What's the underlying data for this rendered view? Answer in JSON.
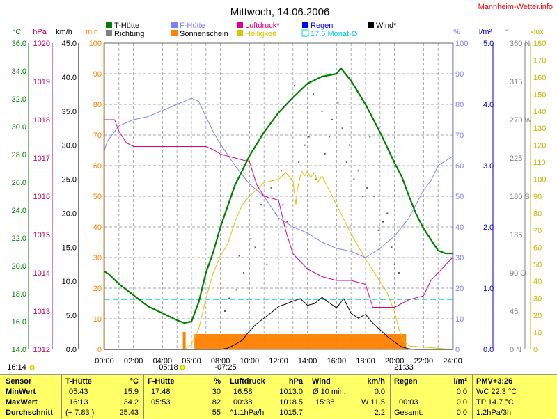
{
  "title": "Mittwoch, 14.06.2006",
  "site": "Mannheim-Wetter.info",
  "legend": [
    {
      "label": "T-Hütte",
      "color": "#008000"
    },
    {
      "label": "Richtung",
      "color": "#808080"
    },
    {
      "label": "F-Hütte",
      "color": "#8080ff"
    },
    {
      "label": "Sonnenschein",
      "color": "#ff8000"
    },
    {
      "label": "Luftdruck*",
      "color": "#e0007f"
    },
    {
      "label": "Helligkeit",
      "color": "#d4c800"
    },
    {
      "label": "Regen",
      "color": "#0000ff"
    },
    {
      "label": "17.6 Monat-Ø",
      "color": "#00d0d0"
    },
    {
      "label": "Wind*",
      "color": "#000000"
    }
  ],
  "axes": {
    "temp": {
      "unit": "°C",
      "color": "#008000",
      "ticks": [
        "36.0",
        "34.0",
        "32.0",
        "30.0",
        "28.0",
        "26.0",
        "24.0",
        "22.0",
        "20.0",
        "18.0",
        "16.0",
        "14.0"
      ]
    },
    "pressure": {
      "unit": "hPa",
      "color": "#cc0066",
      "ticks": [
        "1020",
        "1019",
        "1018",
        "1017",
        "1016",
        "1015",
        "1014",
        "1013",
        "1012"
      ]
    },
    "wind": {
      "unit": "km/h",
      "color": "#000000",
      "ticks": [
        "45.0",
        "40.0",
        "35.0",
        "30.0",
        "25.0",
        "20.0",
        "15.0",
        "10.0",
        "5.0",
        "0.0"
      ]
    },
    "sun": {
      "unit": "min",
      "color": "#ff8000",
      "ticks": [
        "100",
        "90",
        "80",
        "70",
        "60",
        "50",
        "40",
        "30",
        "20",
        "10",
        "0"
      ]
    },
    "humidity": {
      "unit": "%",
      "color": "#8080ff",
      "ticks": [
        "100",
        "90",
        "80",
        "70",
        "60",
        "50",
        "40",
        "30",
        "20",
        "10",
        "0"
      ]
    },
    "rain": {
      "unit": "l/m²",
      "color": "#0000cc",
      "ticks": [
        "5.0",
        "4.0",
        "3.0",
        "2.0",
        "1.0",
        "0.0"
      ]
    },
    "direction": {
      "unit": "°",
      "color": "#808080",
      "ticks": [
        "360 N",
        "315",
        "270 W",
        "225",
        "180 S",
        "135",
        "90  O",
        "45",
        "0  N"
      ]
    },
    "lux": {
      "unit": "klux",
      "color": "#c8b400",
      "ticks": [
        "180",
        "170",
        "160",
        "150",
        "140",
        "130",
        "120",
        "110",
        "100",
        "90",
        "80",
        "70",
        "60",
        "50",
        "40",
        "30",
        "20",
        "10",
        "0"
      ]
    }
  },
  "x_ticks": [
    "00:00",
    "02:00",
    "04:00",
    "06:00",
    "08:00",
    "10:00",
    "12:00",
    "14:00",
    "16:00",
    "18:00",
    "20:00",
    "22:00",
    "24:00"
  ],
  "markers": {
    "sunrise": "05:18",
    "sunset": "21:33",
    "left_time": "16:14",
    "mid_time": "-07:25"
  },
  "chart_data": {
    "type": "line",
    "x_range": [
      0,
      24
    ],
    "month_avg_temp": 17.6,
    "series": [
      {
        "name": "T-Hütte",
        "axis": "temp",
        "ylim": [
          14,
          36
        ],
        "x": [
          0,
          0.3,
          1,
          2,
          3,
          4,
          5,
          5.5,
          6,
          6.5,
          7,
          7.5,
          8,
          8.5,
          9,
          10,
          11,
          12,
          13,
          14,
          15,
          16,
          16.3,
          17,
          18,
          19,
          20,
          20.5,
          21,
          21.5,
          22,
          22.5,
          23,
          23.5,
          24
        ],
        "y": [
          19.6,
          19.4,
          18.7,
          17.9,
          17.1,
          16.6,
          16.1,
          15.9,
          16.0,
          17.4,
          19.5,
          21.0,
          22.8,
          24.3,
          25.8,
          27.9,
          29.6,
          31.0,
          32.1,
          33.1,
          33.6,
          33.8,
          34.2,
          33.3,
          31.6,
          29.6,
          27.4,
          26.4,
          25.0,
          23.7,
          22.7,
          21.9,
          21.1,
          20.9,
          20.9
        ]
      },
      {
        "name": "F-Hütte",
        "axis": "humidity",
        "ylim": [
          0,
          100
        ],
        "x": [
          0,
          0.2,
          1,
          2,
          3,
          4,
          5,
          5.5,
          6,
          6.5,
          7,
          7.5,
          8,
          9,
          10,
          11,
          12,
          13,
          14,
          15,
          16,
          17,
          18,
          19,
          20,
          21,
          22,
          22.5,
          23,
          24
        ],
        "y": [
          65,
          68,
          73,
          75,
          76,
          78,
          80,
          81,
          82,
          81,
          76,
          71,
          67,
          60,
          54,
          50,
          43,
          40,
          38,
          35,
          33,
          32,
          30,
          33,
          37,
          43,
          52,
          55,
          60,
          63
        ]
      },
      {
        "name": "Luftdruck*",
        "axis": "pressure",
        "ylim": [
          1012,
          1020
        ],
        "x": [
          0,
          0.7,
          1,
          1.5,
          2,
          3,
          4,
          5,
          6,
          7,
          7.6,
          8,
          9,
          10,
          10.5,
          11,
          12,
          12.5,
          13,
          14,
          15,
          16,
          17,
          18,
          18.5,
          19,
          20,
          21,
          22,
          22.5,
          23,
          24
        ],
        "y": [
          1018.0,
          1018.0,
          1017.7,
          1017.4,
          1017.3,
          1017.3,
          1017.3,
          1017.3,
          1017.3,
          1017.3,
          1017.2,
          1017.1,
          1017.0,
          1016.9,
          1016.3,
          1016.0,
          1015.9,
          1015.1,
          1014.5,
          1014.1,
          1013.9,
          1013.8,
          1013.8,
          1013.7,
          1013.1,
          1013.1,
          1013.1,
          1013.3,
          1013.4,
          1013.8,
          1014.0,
          1014.4
        ]
      },
      {
        "name": "Wind*",
        "axis": "wind",
        "ylim": [
          0,
          50
        ],
        "x": [
          0,
          6,
          8,
          8.5,
          9,
          9.5,
          10,
          10.5,
          11,
          11.5,
          12,
          12.5,
          13,
          13.5,
          14,
          14.5,
          15,
          15.5,
          16,
          16.5,
          17,
          17.5,
          18,
          18.5,
          19,
          19.5,
          20,
          20.5,
          21,
          21.5,
          22,
          24
        ],
        "y": [
          0,
          0,
          0,
          0.2,
          0.8,
          1.5,
          3.0,
          4.2,
          5.1,
          6.0,
          7.0,
          7.4,
          7.9,
          8.3,
          7.2,
          7.5,
          8.5,
          7.6,
          6.8,
          8.3,
          5.9,
          5.1,
          5.7,
          4.3,
          3.2,
          2.1,
          1.2,
          0.4,
          0.1,
          0,
          0,
          0
        ]
      },
      {
        "name": "Helligkeit",
        "axis": "lux",
        "ylim": [
          0,
          180
        ],
        "x": [
          0,
          5.5,
          6,
          6.5,
          7,
          7.5,
          8,
          8.5,
          9,
          9.5,
          10,
          11,
          12,
          12.5,
          13,
          13.2,
          13.3,
          13.6,
          13.8,
          14,
          14.2,
          14.5,
          14.7,
          15,
          16,
          17,
          18,
          19,
          19.5,
          20,
          20.3,
          20.6,
          21,
          24
        ],
        "y": [
          0,
          0,
          3,
          12,
          30,
          45,
          55,
          62,
          75,
          85,
          90,
          98,
          100,
          104,
          99,
          85,
          94,
          105,
          102,
          105,
          101,
          104,
          98,
          102,
          85,
          68,
          53,
          40,
          33,
          22,
          12,
          5,
          2,
          0
        ]
      },
      {
        "name": "Sonnenschein",
        "axis": "sun",
        "ylim": [
          0,
          100
        ],
        "x": [
          6.2,
          7,
          8,
          9,
          10,
          11,
          12,
          13,
          14,
          15,
          16,
          17,
          18,
          19,
          20,
          20.8
        ],
        "y": [
          5,
          5,
          5,
          5,
          5,
          5,
          5,
          5,
          5,
          5,
          5,
          5,
          5,
          5,
          5,
          5
        ]
      },
      {
        "name": "Richtung",
        "axis": "direction",
        "ylim": [
          0,
          360
        ],
        "x": [
          8.3,
          9.1,
          9.6,
          10.4,
          11.2,
          11.8,
          12.3,
          12.9,
          13.4,
          14.1,
          14.6,
          15.2,
          15.7,
          16.4,
          16.9,
          17.5,
          18.1,
          18.6,
          19.2,
          19.8,
          20.3,
          8.6,
          10.1,
          11.5,
          12.6,
          13.8,
          15.0,
          16.1,
          17.2,
          18.3,
          19.5,
          20.0,
          9.3,
          10.8,
          12.2,
          13.1,
          14.4,
          15.5,
          16.7,
          17.8,
          18.9
        ],
        "y": [
          45,
          70,
          90,
          120,
          100,
          160,
          170,
          200,
          220,
          250,
          200,
          230,
          270,
          260,
          240,
          210,
          190,
          180,
          150,
          120,
          90,
          60,
          130,
          190,
          150,
          240,
          280,
          290,
          200,
          250,
          160,
          100,
          110,
          170,
          210,
          310,
          300,
          250,
          220,
          180,
          140
        ]
      }
    ]
  },
  "stats": {
    "sensor": {
      "header": "Sensor",
      "rows": [
        "MinWert",
        "MaxWert",
        "Durchschnitt"
      ]
    },
    "t_huette": {
      "header": "T-Hütte",
      "unit": "°C",
      "rows": [
        [
          "05:43",
          "15.9"
        ],
        [
          "16:13",
          "34.2"
        ],
        [
          "(+ 7.83 )",
          "25.43"
        ]
      ]
    },
    "f_huette": {
      "header": "F-Hütte",
      "unit": "%",
      "rows": [
        [
          "17:48",
          "30"
        ],
        [
          "05:53",
          "82"
        ],
        [
          "",
          "55"
        ]
      ]
    },
    "luftdruck": {
      "header": "Luftdruck",
      "unit": "hPa",
      "rows": [
        [
          "16:58",
          "1013.0"
        ],
        [
          "00:38",
          "1018.5"
        ],
        [
          "^1.1hPa/h",
          "1015.7"
        ]
      ]
    },
    "wind": {
      "header": "Wind",
      "unit": "km/h",
      "rows": [
        [
          "Ø 10 min.",
          "0.0"
        ],
        [
          "15:38",
          "W 11.5"
        ],
        [
          "",
          "2.2"
        ]
      ]
    },
    "regen": {
      "header": "Regen",
      "unit": "l/m²",
      "rows": [
        [
          "",
          "0.0"
        ],
        [
          "00:03",
          "0.0"
        ],
        [
          "Gesamt:",
          "0.0"
        ]
      ]
    },
    "pmv": {
      "header": "PMV+3:26",
      "rows": [
        "WC 22.3 °C",
        "TP 14.7 °C",
        "1.2hPa/3h"
      ]
    }
  }
}
